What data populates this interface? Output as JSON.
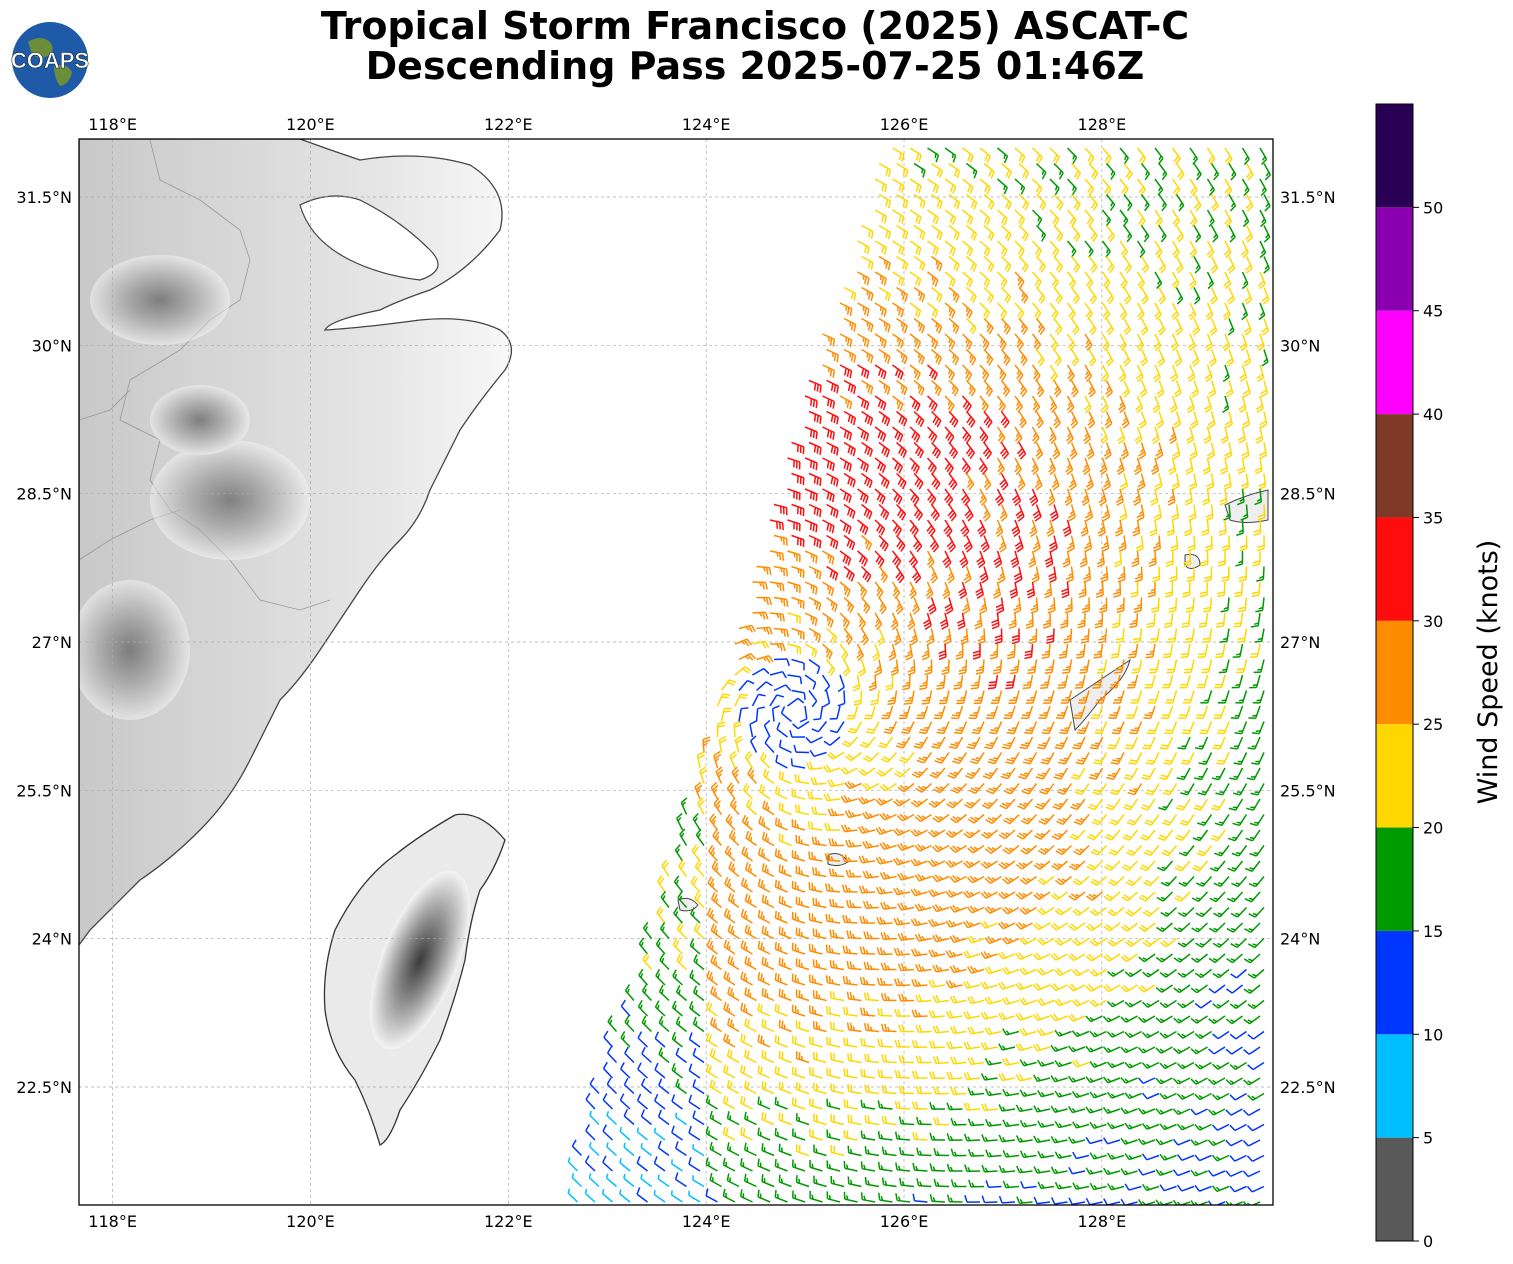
{
  "title": {
    "line1": "Tropical Storm Francisco (2025) ASCAT-C",
    "line2": "Descending Pass 2025-07-25 01:46Z"
  },
  "logo": {
    "text": "COAPS",
    "icon": "globe-icon"
  },
  "map": {
    "lon_range": [
      117.66,
      129.73
    ],
    "lat_range": [
      20.7,
      31.5
    ],
    "lon_ticks": [
      {
        "value": 118,
        "label": "118°E"
      },
      {
        "value": 120,
        "label": "120°E"
      },
      {
        "value": 122,
        "label": "122°E"
      },
      {
        "value": 124,
        "label": "124°E"
      },
      {
        "value": 126,
        "label": "126°E"
      },
      {
        "value": 128,
        "label": "128°E"
      }
    ],
    "lat_ticks": [
      {
        "value": 31.5,
        "label": "31.5°N"
      },
      {
        "value": 30,
        "label": "30°N"
      },
      {
        "value": 28.5,
        "label": "28.5°N"
      },
      {
        "value": 27,
        "label": "27°N"
      },
      {
        "value": 25.5,
        "label": "25.5°N"
      },
      {
        "value": 24,
        "label": "24°N"
      },
      {
        "value": 22.5,
        "label": "22.5°N"
      }
    ],
    "gridlines": true,
    "land_shading": "terrain-greyscale",
    "wind_barbs": "ASCAT-C swath",
    "storm_center_approx": {
      "lon": 124.9,
      "lat": 26.3
    }
  },
  "colorbar": {
    "label": "Wind Speed (knots)",
    "bins": [
      {
        "from": 0,
        "to": 5,
        "color": "#595959"
      },
      {
        "from": 5,
        "to": 10,
        "color": "#00bfff"
      },
      {
        "from": 10,
        "to": 15,
        "color": "#0036ff"
      },
      {
        "from": 15,
        "to": 20,
        "color": "#009900"
      },
      {
        "from": 20,
        "to": 25,
        "color": "#ffd700"
      },
      {
        "from": 25,
        "to": 30,
        "color": "#ff8c00"
      },
      {
        "from": 30,
        "to": 35,
        "color": "#ff0d0d"
      },
      {
        "from": 35,
        "to": 40,
        "color": "#7f3a27"
      },
      {
        "from": 40,
        "to": 45,
        "color": "#ff00ff"
      },
      {
        "from": 45,
        "to": 50,
        "color": "#8a00b0"
      },
      {
        "from": 50,
        "to": 55,
        "color": "#2a0055"
      }
    ],
    "tick_labels": [
      "0",
      "5",
      "10",
      "15",
      "20",
      "25",
      "30",
      "35",
      "40",
      "45",
      "50"
    ]
  }
}
